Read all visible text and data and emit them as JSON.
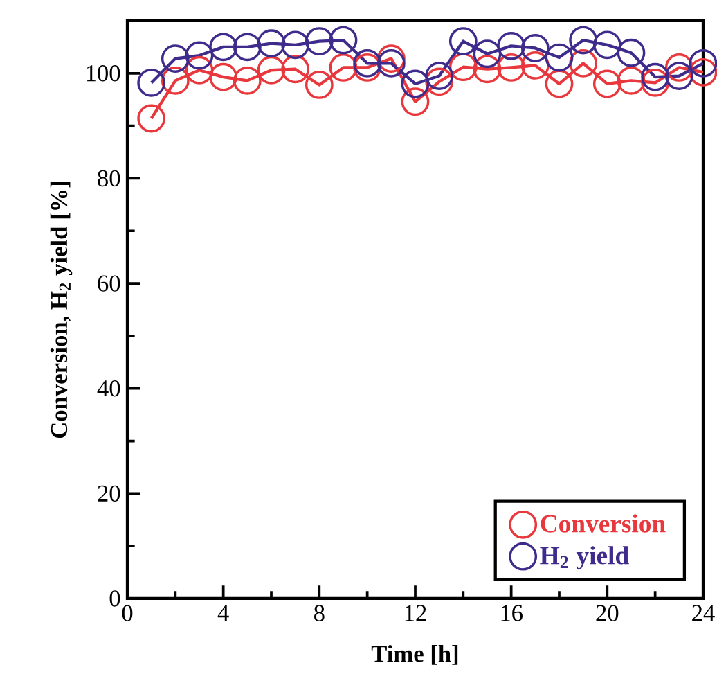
{
  "chart_data": {
    "type": "line",
    "xlabel": "Time [h]",
    "ylabel": "Conversion, H$_{2}$ yield [%]",
    "x": [
      1,
      2,
      3,
      4,
      5,
      6,
      7,
      8,
      9,
      10,
      11,
      12,
      13,
      14,
      15,
      16,
      17,
      18,
      19,
      20,
      21,
      22,
      23,
      24
    ],
    "series": [
      {
        "name": "Conversion",
        "color": "#e8383d",
        "values": [
          91.4,
          98.6,
          100.6,
          99.3,
          98.6,
          100.6,
          100.8,
          97.8,
          101.1,
          101.1,
          102.8,
          94.6,
          98.4,
          101.2,
          100.8,
          101.1,
          101.5,
          98.0,
          101.9,
          98.0,
          98.6,
          98.2,
          101.1,
          100.2
        ]
      },
      {
        "name": "H$_{2}$ yield",
        "color": "#3f2b8c",
        "values": [
          98.2,
          102.8,
          103.4,
          105.0,
          105.0,
          105.7,
          105.4,
          106.1,
          106.3,
          101.9,
          101.9,
          98.0,
          99.5,
          106.1,
          103.7,
          105.2,
          104.8,
          103.0,
          106.3,
          105.4,
          103.9,
          99.3,
          99.5,
          101.9
        ]
      }
    ],
    "xlim": [
      0,
      24
    ],
    "xticks": [
      0,
      4,
      8,
      12,
      16,
      20,
      24
    ],
    "ylim": [
      0,
      110
    ],
    "yticks": [
      0,
      20,
      40,
      60,
      80,
      100
    ],
    "grid": false,
    "legend": "bottom right",
    "marker": "circle",
    "line_style": "solid"
  }
}
